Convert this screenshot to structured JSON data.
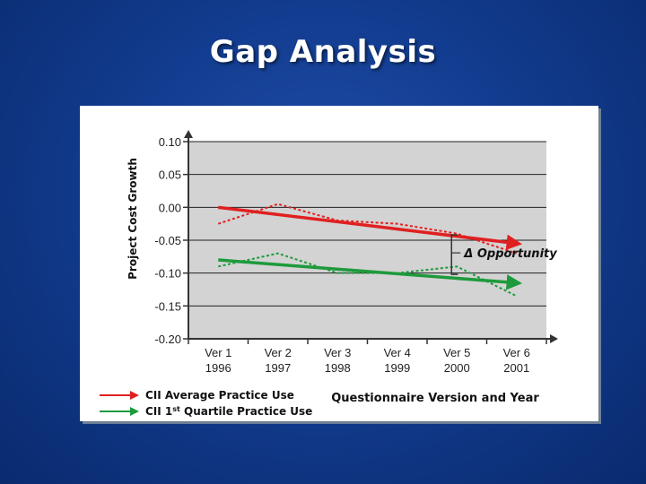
{
  "slide": {
    "title": "Gap Analysis"
  },
  "chart_data": {
    "type": "line",
    "ylabel": "Project Cost Growth",
    "xlabel": "Questionnaire Version and Year",
    "ylim": [
      -0.2,
      0.1
    ],
    "yticks": [
      "0.10",
      "0.05",
      "0.00",
      "-0.05",
      "-0.10",
      "-0.15",
      "-0.20"
    ],
    "categories": [
      {
        "line1": "Ver 1",
        "line2": "1996"
      },
      {
        "line1": "Ver 2",
        "line2": "1997"
      },
      {
        "line1": "Ver 3",
        "line2": "1998"
      },
      {
        "line1": "Ver 4",
        "line2": "1999"
      },
      {
        "line1": "Ver 5",
        "line2": "2000"
      },
      {
        "line1": "Ver 6",
        "line2": "2001"
      }
    ],
    "grid": true,
    "series": [
      {
        "name": "CII Average Practice Use",
        "color": "#e02020",
        "values": [
          -0.025,
          0.005,
          -0.02,
          -0.025,
          -0.04,
          -0.07
        ]
      },
      {
        "name": "CII 1st Quartile Practice Use",
        "color": "#1e9a3c",
        "values": [
          -0.09,
          -0.07,
          -0.1,
          -0.1,
          -0.09,
          -0.135
        ]
      }
    ],
    "trendlines": [
      {
        "series": "CII Average Practice Use",
        "color": "#e02020",
        "start": [
          1,
          0.0
        ],
        "end": [
          6,
          -0.055
        ]
      },
      {
        "series": "CII 1st Quartile Practice Use",
        "color": "#1e9a3c",
        "start": [
          1,
          -0.08
        ],
        "end": [
          6,
          -0.115
        ]
      }
    ],
    "annotation": {
      "text": "Δ Opportunity",
      "x": 5,
      "y_top": -0.042,
      "y_bottom": -0.102
    },
    "legend": {
      "position": "bottom-left",
      "items": [
        {
          "label": "CII Average Practice Use",
          "color": "#e02020"
        },
        {
          "label": "CII 1st Quartile Practice Use",
          "color": "#1e9a3c"
        }
      ]
    }
  }
}
